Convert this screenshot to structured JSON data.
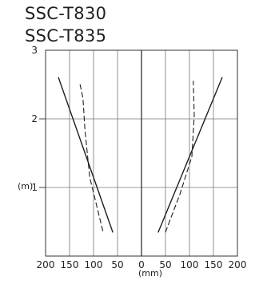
{
  "titles": [
    "SSC-T830",
    "SSC-T835"
  ],
  "chart_data": {
    "type": "line",
    "xlabel": "(mm)",
    "ylabel": "(m)",
    "xlim": [
      -200,
      200
    ],
    "ylim": [
      0,
      3
    ],
    "x_ticks": [
      -200,
      -150,
      -100,
      -50,
      0,
      50,
      100,
      150,
      200
    ],
    "x_tick_labels": [
      "200",
      "150",
      "100",
      "50",
      "0",
      "50",
      "100",
      "150",
      "200"
    ],
    "y_ticks": [
      1,
      2,
      3
    ],
    "y_tick_labels": [
      "1",
      "2",
      "3"
    ],
    "grid": true,
    "series": [
      {
        "style": "solid",
        "x": [
          -173,
          -60
        ],
        "y": [
          2.6,
          0.35
        ]
      },
      {
        "style": "dashed",
        "x": [
          -128,
          -122,
          -118,
          -108,
          -80
        ],
        "y": [
          2.5,
          2.3,
          1.85,
          1.15,
          0.35
        ]
      },
      {
        "style": "solid",
        "x": [
          35,
          168
        ],
        "y": [
          0.35,
          2.6
        ]
      },
      {
        "style": "dashed",
        "x": [
          50,
          80,
          105,
          110,
          108
        ],
        "y": [
          0.35,
          0.9,
          1.45,
          2.05,
          2.55
        ]
      }
    ]
  }
}
